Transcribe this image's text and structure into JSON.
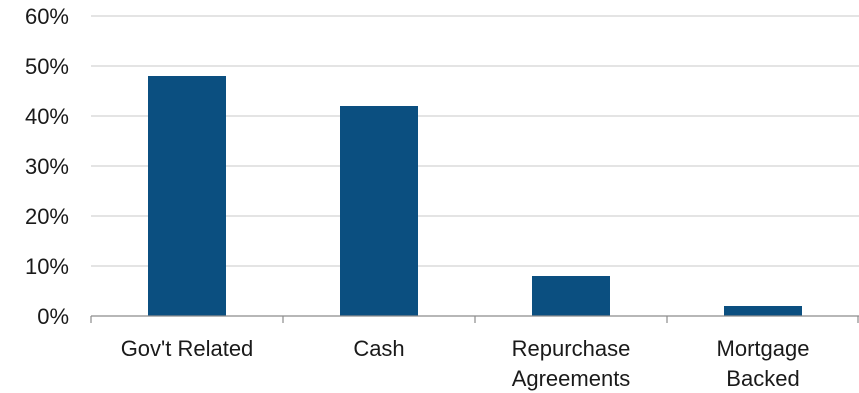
{
  "chart_data": {
    "type": "bar",
    "categories": [
      [
        "Gov't Related"
      ],
      [
        "Cash"
      ],
      [
        "Repurchase",
        "Agreements"
      ],
      [
        "Mortgage",
        "Backed"
      ]
    ],
    "values": [
      48,
      42,
      8,
      2
    ],
    "ylim": [
      0,
      60
    ],
    "yticks": [
      0,
      10,
      20,
      30,
      40,
      50,
      60
    ],
    "ytick_labels": [
      "0%",
      "10%",
      "20%",
      "30%",
      "40%",
      "50%",
      "60%"
    ],
    "grid": true,
    "bar_color": "#0b4f80",
    "title": "",
    "xlabel": "",
    "ylabel": ""
  }
}
